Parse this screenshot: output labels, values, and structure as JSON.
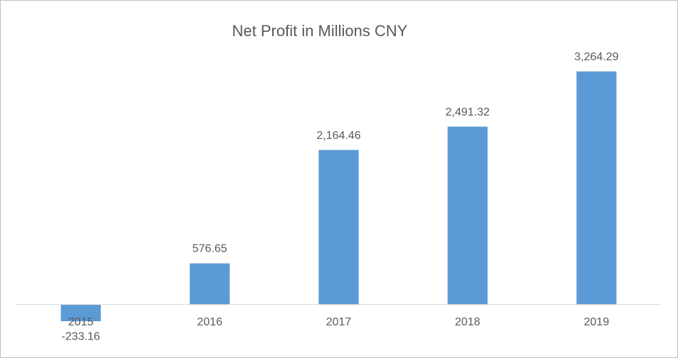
{
  "chart_data": {
    "type": "bar",
    "title": "Net Profit in Millions CNY",
    "categories": [
      "2015",
      "2016",
      "2017",
      "2018",
      "2019"
    ],
    "values": [
      -233.16,
      576.65,
      2164.46,
      2491.32,
      3264.29
    ],
    "value_labels": [
      "-233.16",
      "576.65",
      "2,164.46",
      "2,491.32",
      "3,264.29"
    ],
    "color": "#5b9bd5",
    "ylim": [
      -500,
      3500
    ]
  }
}
